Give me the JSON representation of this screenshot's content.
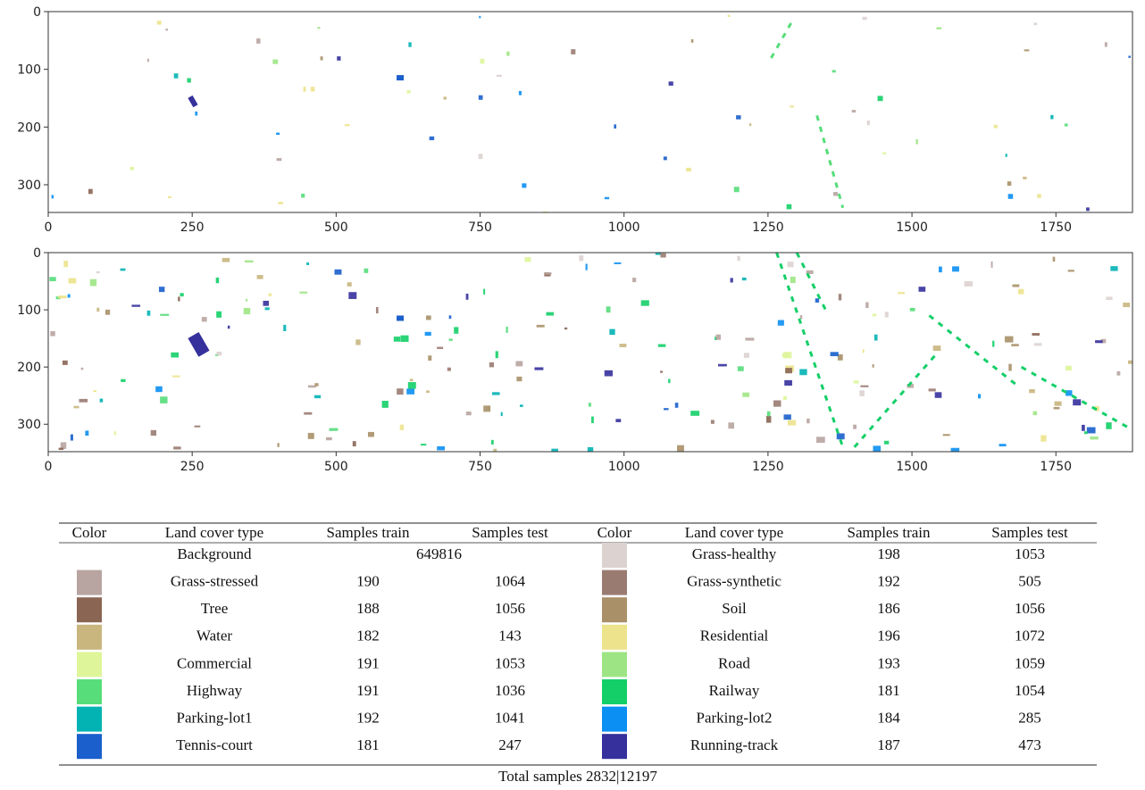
{
  "figure": {
    "panels": [
      {
        "xlim": [
          0,
          1883
        ],
        "ylim": [
          348,
          0
        ],
        "xticks": [
          0,
          250,
          500,
          750,
          1000,
          1250,
          1500,
          1750
        ],
        "yticks": [
          0,
          100,
          200,
          300
        ]
      },
      {
        "xlim": [
          0,
          1883
        ],
        "ylim": [
          348,
          0
        ],
        "xticks": [
          0,
          250,
          500,
          750,
          1000,
          1250,
          1500,
          1750
        ],
        "yticks": [
          0,
          100,
          200,
          300
        ]
      }
    ]
  },
  "table": {
    "header": [
      "Color",
      "Land cover type",
      "Samples train",
      "Samples test",
      "Color",
      "Land cover type",
      "Samples train",
      "Samples test"
    ],
    "background": {
      "type": "Background",
      "samples": 649816
    },
    "left": [
      {
        "color": "#b8a4a0",
        "type": "Grass-stressed",
        "train": 190,
        "test": 1064
      },
      {
        "color": "#8a6553",
        "type": "Tree",
        "train": 188,
        "test": 1056
      },
      {
        "color": "#c9b67f",
        "type": "Water",
        "train": 182,
        "test": 143
      },
      {
        "color": "#def59a",
        "type": "Commercial",
        "train": 191,
        "test": 1053
      },
      {
        "color": "#57dd7a",
        "type": "Highway",
        "train": 191,
        "test": 1036
      },
      {
        "color": "#03b3b3",
        "type": "Parking-lot1",
        "train": 192,
        "test": 1041
      },
      {
        "color": "#1a5fcc",
        "type": "Tennis-court",
        "train": 181,
        "test": 247
      }
    ],
    "right": [
      {
        "color": "#dcd2d0",
        "type": "Grass-healthy",
        "train": 198,
        "test": 1053
      },
      {
        "color": "#9a7b72",
        "type": "Grass-synthetic",
        "train": 192,
        "test": 505
      },
      {
        "color": "#a99068",
        "type": "Soil",
        "train": 186,
        "test": 1056
      },
      {
        "color": "#ece38c",
        "type": "Residential",
        "train": 196,
        "test": 1072
      },
      {
        "color": "#9de584",
        "type": "Road",
        "train": 193,
        "test": 1059
      },
      {
        "color": "#14cf68",
        "type": "Railway",
        "train": 181,
        "test": 1054
      },
      {
        "color": "#0b8ff2",
        "type": "Parking-lot2",
        "train": 184,
        "test": 285
      },
      {
        "color": "#35309c",
        "type": "Running-track",
        "train": 187,
        "test": 473
      }
    ],
    "footer": "Total samples 2832|12197"
  }
}
